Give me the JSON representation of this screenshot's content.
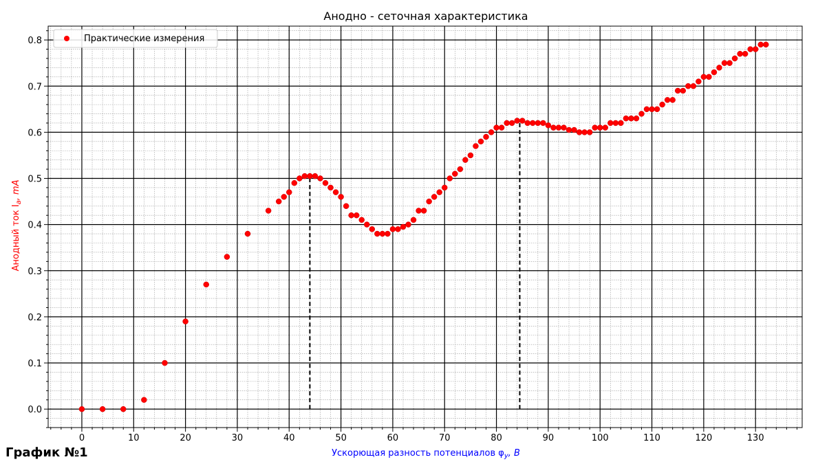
{
  "page": {
    "footer_label": "График №1"
  },
  "chart_data": {
    "type": "scatter",
    "title": "Анодно - сеточная характеристика",
    "xlabel": "Ускорющая разность потенциалов φ",
    "xlabel_sub": "y",
    "xlabel_tail": ", B",
    "ylabel": "Анодный ток I",
    "ylabel_sub": "a",
    "ylabel_tail": ", mA",
    "xlim": [
      -6.5,
      139
    ],
    "ylim": [
      -0.04,
      0.83
    ],
    "x_ticks": [
      0,
      10,
      20,
      30,
      40,
      50,
      60,
      70,
      80,
      90,
      100,
      110,
      120,
      130
    ],
    "y_ticks": [
      0.0,
      0.1,
      0.2,
      0.3,
      0.4,
      0.5,
      0.6,
      0.7,
      0.8
    ],
    "grid": true,
    "legend_position": "top-left",
    "colors": {
      "points": "#ff0000",
      "xlabel": "#0000ff",
      "ylabel": "#ff0000"
    },
    "series": [
      {
        "name": "Практические измерения",
        "x": [
          0,
          4,
          8,
          12,
          16,
          20,
          24,
          28,
          32,
          36,
          38,
          39,
          40,
          41,
          42,
          43,
          44,
          45,
          46,
          47,
          48,
          49,
          50,
          51,
          52,
          53,
          54,
          55,
          56,
          57,
          58,
          59,
          60,
          61,
          62,
          63,
          64,
          65,
          66,
          67,
          68,
          69,
          70,
          71,
          72,
          73,
          74,
          75,
          76,
          77,
          78,
          79,
          80,
          81,
          82,
          83,
          84,
          85,
          86,
          87,
          88,
          89,
          90,
          91,
          92,
          93,
          94,
          95,
          96,
          97,
          98,
          99,
          100,
          101,
          102,
          103,
          104,
          105,
          106,
          107,
          108,
          109,
          110,
          111,
          112,
          113,
          114,
          115,
          116,
          117,
          118,
          119,
          120,
          121,
          122,
          123,
          124,
          125,
          126,
          127,
          128,
          129,
          130,
          131,
          132
        ],
        "y": [
          0.0,
          0.0,
          0.0,
          0.02,
          0.1,
          0.19,
          0.27,
          0.33,
          0.38,
          0.43,
          0.45,
          0.46,
          0.47,
          0.49,
          0.5,
          0.505,
          0.505,
          0.505,
          0.5,
          0.49,
          0.48,
          0.47,
          0.46,
          0.44,
          0.42,
          0.42,
          0.41,
          0.4,
          0.39,
          0.38,
          0.38,
          0.38,
          0.39,
          0.39,
          0.395,
          0.4,
          0.41,
          0.43,
          0.43,
          0.45,
          0.46,
          0.47,
          0.48,
          0.5,
          0.51,
          0.52,
          0.54,
          0.55,
          0.57,
          0.58,
          0.59,
          0.6,
          0.61,
          0.61,
          0.62,
          0.62,
          0.625,
          0.625,
          0.62,
          0.62,
          0.62,
          0.62,
          0.615,
          0.61,
          0.61,
          0.61,
          0.605,
          0.605,
          0.6,
          0.6,
          0.6,
          0.61,
          0.61,
          0.61,
          0.62,
          0.62,
          0.62,
          0.63,
          0.63,
          0.63,
          0.64,
          0.65,
          0.65,
          0.65,
          0.66,
          0.67,
          0.67,
          0.69,
          0.69,
          0.7,
          0.7,
          0.71,
          0.72,
          0.72,
          0.73,
          0.74,
          0.75,
          0.75,
          0.76,
          0.77,
          0.77,
          0.78,
          0.78,
          0.79,
          0.79
        ]
      }
    ],
    "reference_lines": [
      {
        "x": 44,
        "y_from": 0.0,
        "y_to": 0.505,
        "style": "dashed"
      },
      {
        "x": 84.5,
        "y_from": 0.0,
        "y_to": 0.625,
        "style": "dashed"
      }
    ]
  }
}
